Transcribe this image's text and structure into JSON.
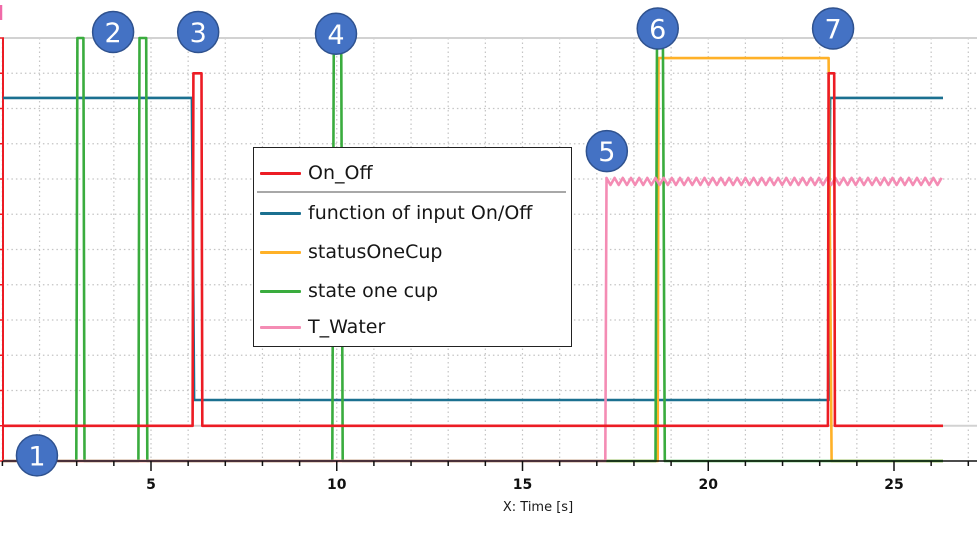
{
  "chart_data": {
    "type": "line",
    "title": "",
    "xlabel": "X: Time [s]",
    "ylabel": "",
    "xlim": [
      1,
      27
    ],
    "ylim": [
      0,
      12
    ],
    "x_ticks": [
      5,
      10,
      15,
      20,
      25
    ],
    "x_tick_labels": [
      "5",
      "10",
      "15",
      "20",
      "25"
    ],
    "x_minor_step": 1,
    "y_ticks_unlabeled": [
      0,
      1,
      2,
      3,
      4,
      5,
      6,
      7,
      8,
      9,
      10,
      11,
      12
    ],
    "y_gridlines_dotted": [
      2,
      3,
      4,
      5,
      6,
      7,
      8,
      9,
      10,
      11
    ],
    "y_gridlines_solid": [
      1,
      12
    ],
    "grid": true,
    "legend_position": "inside, center-left",
    "y_units_note": "y-axis has no visible labels; values are in gridline units (0-12)",
    "series": [
      {
        "name": "On_Off",
        "color": "#ec1c24",
        "points": [
          [
            1.02,
            1
          ],
          [
            6.12,
            1
          ],
          [
            6.14,
            11
          ],
          [
            6.36,
            11
          ],
          [
            6.38,
            1
          ],
          [
            23.22,
            1
          ],
          [
            23.24,
            11
          ],
          [
            23.39,
            11
          ],
          [
            23.41,
            1
          ],
          [
            26.32,
            1
          ]
        ]
      },
      {
        "name": "function of input On/Off",
        "color": "#1b7090",
        "points": [
          [
            1.02,
            10.3
          ],
          [
            6.1,
            10.3
          ],
          [
            6.16,
            1.73
          ],
          [
            23.24,
            1.73
          ],
          [
            23.28,
            10.3
          ],
          [
            26.32,
            10.3
          ]
        ]
      },
      {
        "name": "statusOneCup",
        "color": "#ffb128",
        "points": [
          [
            1.02,
            0
          ],
          [
            18.64,
            0
          ],
          [
            18.66,
            11.43
          ],
          [
            23.24,
            11.43
          ],
          [
            23.32,
            0
          ],
          [
            26.32,
            0
          ]
        ]
      },
      {
        "name": "state one cup",
        "color": "#3aac3e",
        "points": [
          [
            1.02,
            0
          ],
          [
            2.99,
            0
          ],
          [
            3.02,
            12
          ],
          [
            3.18,
            12
          ],
          [
            3.21,
            0
          ],
          [
            4.66,
            0
          ],
          [
            4.69,
            12
          ],
          [
            4.87,
            12
          ],
          [
            4.9,
            0
          ],
          [
            9.88,
            0
          ],
          [
            9.92,
            12
          ],
          [
            10.12,
            12
          ],
          [
            10.16,
            0
          ],
          [
            18.58,
            0
          ],
          [
            18.62,
            12
          ],
          [
            18.78,
            12
          ],
          [
            18.83,
            0
          ],
          [
            26.32,
            0
          ]
        ]
      },
      {
        "name": "T_Water",
        "color": "#f48cb4",
        "points": [
          [
            1.02,
            0
          ],
          [
            17.23,
            0
          ],
          [
            17.26,
            7.93
          ]
        ],
        "ripple": {
          "from": 17.26,
          "to": 26.32,
          "center": 7.93,
          "amplitude": 0.1,
          "period": 0.22
        }
      }
    ],
    "annotations": [
      {
        "label": "1",
        "t": 1.93,
        "v": 0.16
      },
      {
        "label": "2",
        "t": 3.98,
        "v": 12.17
      },
      {
        "label": "3",
        "t": 6.27,
        "v": 12.17
      },
      {
        "label": "4",
        "t": 9.98,
        "v": 12.12
      },
      {
        "label": "5",
        "t": 17.27,
        "v": 8.79
      },
      {
        "label": "6",
        "t": 18.64,
        "v": 12.27
      },
      {
        "label": "7",
        "t": 23.36,
        "v": 12.27
      }
    ],
    "annotation_style": {
      "fill": "#4472c4",
      "stroke": "#2f528f",
      "text": "#ffffff"
    },
    "axis_colors": {
      "y_axis": "#ec1c24",
      "x_axis": "#111111",
      "grid": "#c4c4c4"
    }
  }
}
